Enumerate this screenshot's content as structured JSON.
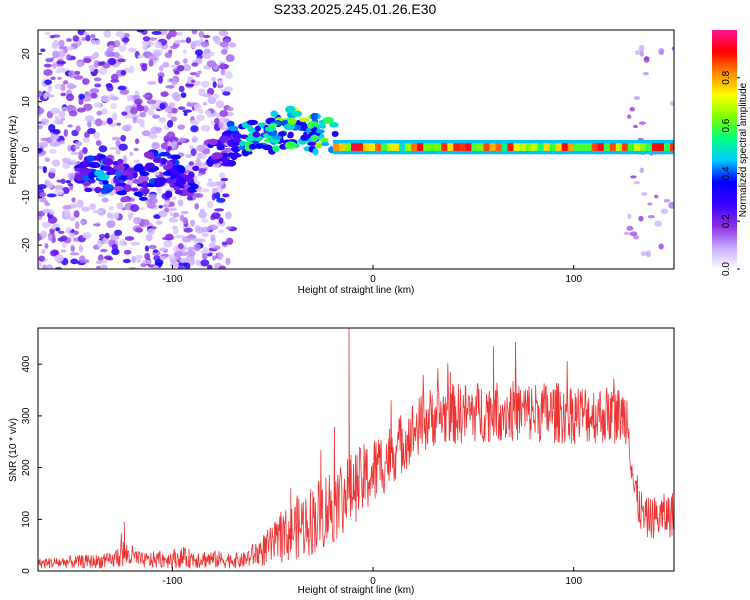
{
  "title": "S233.2025.245.01.26.E30",
  "chart_data": [
    {
      "type": "heatmap",
      "name": "spectrogram",
      "xlabel": "Height of straight line (km)",
      "ylabel": "Frequency (Hz)",
      "xlim": [
        -167,
        150
      ],
      "ylim": [
        -25,
        25
      ],
      "xticks": [
        "-100",
        "0",
        "100"
      ],
      "xtick_values": [
        -100,
        0,
        100
      ],
      "yticks": [
        "-20",
        "-10",
        "0",
        "10",
        "20"
      ],
      "ytick_values": [
        -20,
        -10,
        0,
        10,
        20
      ],
      "colorbar": {
        "label": "Normalized spectral amplitude",
        "range": [
          0,
          1
        ],
        "ticks": [
          "0.0",
          "0.2",
          "0.4",
          "0.6",
          "0.8"
        ],
        "tick_values": [
          0.0,
          0.2,
          0.4,
          0.6,
          0.8
        ],
        "colors": [
          "#ffffff",
          "#c8a8ff",
          "#8a2be2",
          "#3a00ff",
          "#0000ff",
          "#00c8ff",
          "#00ff7f",
          "#7fff00",
          "#ffff00",
          "#ff8c00",
          "#ff0000",
          "#ff1493"
        ]
      },
      "noise_region": {
        "x_from": -167,
        "x_to": -70,
        "freq_spread": 25
      },
      "rising_cluster": [
        {
          "x": -140,
          "y": -5,
          "amp": 0.35
        },
        {
          "x": -130,
          "y": -6,
          "amp": 0.4
        },
        {
          "x": -120,
          "y": -7,
          "amp": 0.3
        },
        {
          "x": -105,
          "y": -4,
          "amp": 0.35
        },
        {
          "x": -95,
          "y": -6,
          "amp": 0.3
        },
        {
          "x": -75,
          "y": 0,
          "amp": 0.3
        },
        {
          "x": -65,
          "y": 2,
          "amp": 0.45
        },
        {
          "x": -55,
          "y": 3,
          "amp": 0.5
        },
        {
          "x": -45,
          "y": 4,
          "amp": 0.55
        },
        {
          "x": -35,
          "y": 5,
          "amp": 0.6
        },
        {
          "x": -25,
          "y": 3,
          "amp": 0.55
        }
      ],
      "tone_band": {
        "x_from": -20,
        "x_to": 150,
        "freq": 0.5,
        "amp": 0.9
      }
    },
    {
      "type": "line",
      "name": "snr",
      "xlabel": "Height of straight line (km)",
      "ylabel": "SNR (10 * v/v)",
      "xlim": [
        -167,
        150
      ],
      "ylim": [
        0,
        470
      ],
      "xticks": [
        "-100",
        "0",
        "100"
      ],
      "xtick_values": [
        -100,
        0,
        100
      ],
      "yticks": [
        "0",
        "100",
        "200",
        "300",
        "400"
      ],
      "ytick_values": [
        0,
        100,
        200,
        300,
        400
      ],
      "color": "#ee3333",
      "envelope": [
        {
          "x": -167,
          "mean": 15,
          "spread": 10
        },
        {
          "x": -130,
          "mean": 20,
          "spread": 15
        },
        {
          "x": -125,
          "mean": 35,
          "spread": 30
        },
        {
          "x": -115,
          "mean": 20,
          "spread": 15
        },
        {
          "x": -95,
          "mean": 25,
          "spread": 20
        },
        {
          "x": -65,
          "mean": 20,
          "spread": 15
        },
        {
          "x": -50,
          "mean": 50,
          "spread": 40
        },
        {
          "x": -40,
          "mean": 80,
          "spread": 60
        },
        {
          "x": -30,
          "mean": 100,
          "spread": 70
        },
        {
          "x": -20,
          "mean": 130,
          "spread": 80
        },
        {
          "x": -10,
          "mean": 160,
          "spread": 70
        },
        {
          "x": 0,
          "mean": 190,
          "spread": 70
        },
        {
          "x": 10,
          "mean": 230,
          "spread": 60
        },
        {
          "x": 20,
          "mean": 270,
          "spread": 60
        },
        {
          "x": 30,
          "mean": 300,
          "spread": 60
        },
        {
          "x": 60,
          "mean": 310,
          "spread": 60
        },
        {
          "x": 100,
          "mean": 305,
          "spread": 60
        },
        {
          "x": 127,
          "mean": 300,
          "spread": 55
        },
        {
          "x": 130,
          "mean": 160,
          "spread": 50
        },
        {
          "x": 135,
          "mean": 100,
          "spread": 40
        },
        {
          "x": 150,
          "mean": 110,
          "spread": 45
        }
      ],
      "spikes": [
        {
          "x": -12,
          "y": 470
        },
        {
          "x": -41,
          "y": 160
        },
        {
          "x": -124,
          "y": 95
        },
        {
          "x": 60,
          "y": 435
        }
      ]
    }
  ]
}
